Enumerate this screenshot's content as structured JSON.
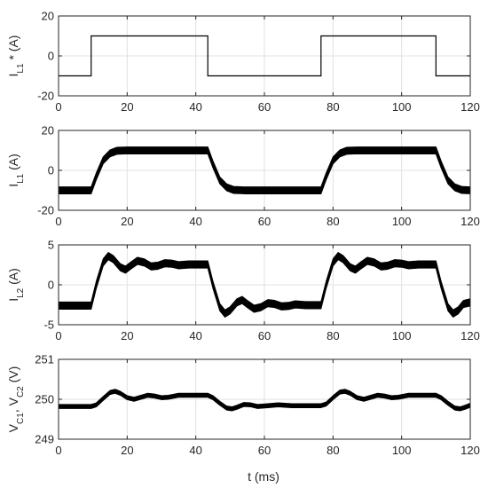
{
  "xlabel": "t (ms)",
  "chart_data": [
    {
      "type": "line",
      "ylabel": "I_L1 * (A)",
      "xlim": [
        0,
        120
      ],
      "ylim": [
        -20,
        20
      ],
      "xticks": [
        0,
        20,
        40,
        60,
        80,
        100,
        120
      ],
      "yticks": [
        -20,
        0,
        20
      ],
      "grid": true,
      "series": [
        {
          "band": 0,
          "points": [
            [
              0,
              -10
            ],
            [
              9.5,
              -10
            ],
            [
              9.5,
              10
            ],
            [
              43.5,
              10
            ],
            [
              43.5,
              -10
            ],
            [
              76.5,
              -10
            ],
            [
              76.5,
              10
            ],
            [
              110,
              10
            ],
            [
              110,
              -10
            ],
            [
              120,
              -10
            ]
          ]
        }
      ]
    },
    {
      "type": "line",
      "ylabel": "I_L1 (A)",
      "xlim": [
        0,
        120
      ],
      "ylim": [
        -20,
        20
      ],
      "xticks": [
        0,
        20,
        40,
        60,
        80,
        100,
        120
      ],
      "yticks": [
        -20,
        0,
        20
      ],
      "grid": true,
      "series": [
        {
          "band": 3.5,
          "points": [
            [
              0,
              -10
            ],
            [
              9.5,
              -10
            ],
            [
              11,
              -3
            ],
            [
              13,
              5
            ],
            [
              15,
              8.5
            ],
            [
              17,
              9.8
            ],
            [
              20,
              10
            ],
            [
              43.5,
              10
            ],
            [
              45,
              3
            ],
            [
              47,
              -5
            ],
            [
              49,
              -8.5
            ],
            [
              51,
              -9.8
            ],
            [
              54,
              -10
            ],
            [
              76.5,
              -10
            ],
            [
              78,
              -3
            ],
            [
              80,
              5
            ],
            [
              82,
              8.5
            ],
            [
              84,
              9.8
            ],
            [
              87,
              10
            ],
            [
              110,
              10
            ],
            [
              111.5,
              3
            ],
            [
              113.5,
              -5
            ],
            [
              115.5,
              -8.5
            ],
            [
              117.5,
              -9.8
            ],
            [
              120,
              -10
            ]
          ]
        }
      ]
    },
    {
      "type": "line",
      "ylabel": "I_L2 (A)",
      "xlim": [
        0,
        120
      ],
      "ylim": [
        -5,
        5
      ],
      "xticks": [
        0,
        20,
        40,
        60,
        80,
        100,
        120
      ],
      "yticks": [
        -5,
        0,
        5
      ],
      "grid": true,
      "series": [
        {
          "band": 0.9,
          "points": [
            [
              0,
              -2.6
            ],
            [
              9.5,
              -2.6
            ],
            [
              11,
              0
            ],
            [
              13,
              2.8
            ],
            [
              14.5,
              3.6
            ],
            [
              16,
              3.2
            ],
            [
              18,
              2.2
            ],
            [
              19.5,
              1.9
            ],
            [
              21,
              2.4
            ],
            [
              23,
              3.0
            ],
            [
              25,
              2.8
            ],
            [
              27,
              2.3
            ],
            [
              29,
              2.4
            ],
            [
              31,
              2.7
            ],
            [
              33,
              2.65
            ],
            [
              35,
              2.45
            ],
            [
              38,
              2.55
            ],
            [
              43.5,
              2.55
            ],
            [
              45,
              0
            ],
            [
              47,
              -2.8
            ],
            [
              48.5,
              -3.6
            ],
            [
              50,
              -3.2
            ],
            [
              52,
              -2.2
            ],
            [
              53.5,
              -1.9
            ],
            [
              55,
              -2.4
            ],
            [
              57,
              -3.0
            ],
            [
              59,
              -2.8
            ],
            [
              61,
              -2.3
            ],
            [
              63,
              -2.4
            ],
            [
              65,
              -2.7
            ],
            [
              67,
              -2.65
            ],
            [
              69,
              -2.45
            ],
            [
              72,
              -2.55
            ],
            [
              76.5,
              -2.55
            ],
            [
              78,
              0
            ],
            [
              80,
              2.8
            ],
            [
              81.5,
              3.6
            ],
            [
              83,
              3.2
            ],
            [
              85,
              2.2
            ],
            [
              86.5,
              1.9
            ],
            [
              88,
              2.4
            ],
            [
              90,
              3.0
            ],
            [
              92,
              2.8
            ],
            [
              94,
              2.3
            ],
            [
              96,
              2.4
            ],
            [
              98,
              2.7
            ],
            [
              100,
              2.65
            ],
            [
              102,
              2.45
            ],
            [
              105,
              2.55
            ],
            [
              110,
              2.55
            ],
            [
              111.5,
              0
            ],
            [
              113.5,
              -2.8
            ],
            [
              115,
              -3.6
            ],
            [
              116.5,
              -3.2
            ],
            [
              118,
              -2.4
            ],
            [
              120,
              -2.2
            ]
          ]
        }
      ]
    },
    {
      "type": "line",
      "ylabel": "V_C1, V_C2 (V)",
      "xlim": [
        0,
        120
      ],
      "ylim": [
        249,
        251
      ],
      "xticks": [
        0,
        20,
        40,
        60,
        80,
        100,
        120
      ],
      "yticks": [
        249,
        250,
        251
      ],
      "grid": true,
      "series": [
        {
          "band": 0.1,
          "points": [
            [
              0,
              249.82
            ],
            [
              9.5,
              249.82
            ],
            [
              11,
              249.86
            ],
            [
              13,
              250.02
            ],
            [
              15,
              250.17
            ],
            [
              16.5,
              250.2
            ],
            [
              18,
              250.15
            ],
            [
              20,
              250.04
            ],
            [
              22,
              250.0
            ],
            [
              24,
              250.05
            ],
            [
              26,
              250.1
            ],
            [
              28,
              250.08
            ],
            [
              30,
              250.04
            ],
            [
              32,
              250.05
            ],
            [
              35,
              250.1
            ],
            [
              43.5,
              250.1
            ],
            [
              45,
              250.04
            ],
            [
              47,
              249.9
            ],
            [
              49,
              249.78
            ],
            [
              50.5,
              249.76
            ],
            [
              52,
              249.8
            ],
            [
              54,
              249.87
            ],
            [
              56,
              249.86
            ],
            [
              58,
              249.82
            ],
            [
              61,
              249.84
            ],
            [
              64,
              249.86
            ],
            [
              68,
              249.84
            ],
            [
              76.5,
              249.84
            ],
            [
              78,
              249.88
            ],
            [
              80,
              250.04
            ],
            [
              82,
              250.18
            ],
            [
              83.5,
              250.2
            ],
            [
              85,
              250.15
            ],
            [
              87,
              250.04
            ],
            [
              89,
              250.0
            ],
            [
              91,
              250.05
            ],
            [
              93,
              250.1
            ],
            [
              95,
              250.08
            ],
            [
              97,
              250.04
            ],
            [
              99,
              250.05
            ],
            [
              102,
              250.1
            ],
            [
              110,
              250.1
            ],
            [
              111.5,
              250.04
            ],
            [
              113.5,
              249.9
            ],
            [
              115.5,
              249.78
            ],
            [
              117,
              249.76
            ],
            [
              118.5,
              249.8
            ],
            [
              120,
              249.85
            ]
          ]
        }
      ]
    }
  ]
}
